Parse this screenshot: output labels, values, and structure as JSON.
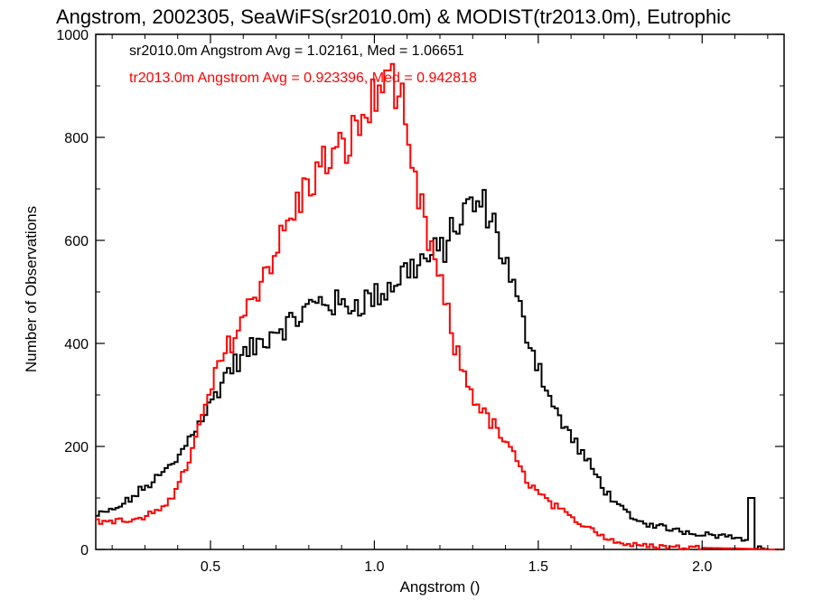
{
  "chart_data": {
    "type": "histogram-step",
    "title": "Angstrom, 2002305, SeaWiFS(sr2010.0m) & MODIST(tr2013.0m), Eutrophic",
    "xlabel": "Angstrom ()",
    "ylabel": "Number of Observations",
    "xlim": [
      0.15,
      2.25
    ],
    "ylim": [
      0,
      1000
    ],
    "xticks": [
      0.5,
      1.0,
      1.5,
      2.0
    ],
    "xtick_labels": [
      "0.5",
      "1.0",
      "1.5",
      "2.0"
    ],
    "yticks": [
      0,
      200,
      400,
      600,
      800,
      1000
    ],
    "ytick_labels": [
      "0",
      "200",
      "400",
      "600",
      "800",
      "1000"
    ],
    "grid": false,
    "bin_width": 0.01,
    "x_start": 0.15,
    "annotations": [
      {
        "text": "sr2010.0m Angstrom Avg = 1.02161, Med = 1.06651",
        "color": "#000000"
      },
      {
        "text": "tr2013.0m Angstrom Avg = 0.923396, Med = 0.942818",
        "color": "#ff0000"
      }
    ],
    "series": [
      {
        "color": "#000000",
        "anchors": [
          [
            0.15,
            65
          ],
          [
            0.2,
            75
          ],
          [
            0.25,
            95
          ],
          [
            0.3,
            120
          ],
          [
            0.35,
            145
          ],
          [
            0.4,
            175
          ],
          [
            0.45,
            235
          ],
          [
            0.5,
            280
          ],
          [
            0.55,
            345
          ],
          [
            0.6,
            375
          ],
          [
            0.65,
            400
          ],
          [
            0.7,
            430
          ],
          [
            0.75,
            440
          ],
          [
            0.8,
            470
          ],
          [
            0.85,
            485
          ],
          [
            0.9,
            470
          ],
          [
            0.95,
            480
          ],
          [
            1.0,
            490
          ],
          [
            1.05,
            510
          ],
          [
            1.1,
            545
          ],
          [
            1.15,
            560
          ],
          [
            1.2,
            575
          ],
          [
            1.25,
            630
          ],
          [
            1.3,
            670
          ],
          [
            1.35,
            660
          ],
          [
            1.4,
            560
          ],
          [
            1.45,
            450
          ],
          [
            1.5,
            360
          ],
          [
            1.55,
            270
          ],
          [
            1.6,
            220
          ],
          [
            1.65,
            170
          ],
          [
            1.7,
            120
          ],
          [
            1.75,
            80
          ],
          [
            1.8,
            55
          ],
          [
            1.9,
            40
          ],
          [
            2.0,
            30
          ],
          [
            2.1,
            25
          ],
          [
            2.15,
            20
          ],
          [
            2.16,
            5
          ],
          [
            2.2,
            0
          ],
          [
            2.25,
            0
          ]
        ],
        "spikes": [
          [
            2.145,
            100
          ]
        ]
      },
      {
        "color": "#ff0000",
        "anchors": [
          [
            0.15,
            55
          ],
          [
            0.2,
            55
          ],
          [
            0.25,
            55
          ],
          [
            0.3,
            60
          ],
          [
            0.35,
            80
          ],
          [
            0.4,
            120
          ],
          [
            0.45,
            200
          ],
          [
            0.5,
            310
          ],
          [
            0.55,
            390
          ],
          [
            0.6,
            450
          ],
          [
            0.65,
            520
          ],
          [
            0.7,
            580
          ],
          [
            0.75,
            650
          ],
          [
            0.8,
            710
          ],
          [
            0.85,
            750
          ],
          [
            0.9,
            770
          ],
          [
            0.95,
            820
          ],
          [
            1.0,
            870
          ],
          [
            1.05,
            900
          ],
          [
            1.08,
            880
          ],
          [
            1.1,
            760
          ],
          [
            1.15,
            640
          ],
          [
            1.2,
            520
          ],
          [
            1.25,
            380
          ],
          [
            1.3,
            300
          ],
          [
            1.35,
            250
          ],
          [
            1.4,
            210
          ],
          [
            1.45,
            150
          ],
          [
            1.5,
            110
          ],
          [
            1.55,
            85
          ],
          [
            1.6,
            60
          ],
          [
            1.65,
            45
          ],
          [
            1.7,
            25
          ],
          [
            1.75,
            12
          ],
          [
            1.8,
            8
          ],
          [
            1.9,
            5
          ],
          [
            2.0,
            3
          ],
          [
            2.1,
            2
          ],
          [
            2.2,
            0
          ],
          [
            2.25,
            0
          ]
        ],
        "spikes": [
          [
            1.04,
            930
          ]
        ]
      }
    ]
  }
}
